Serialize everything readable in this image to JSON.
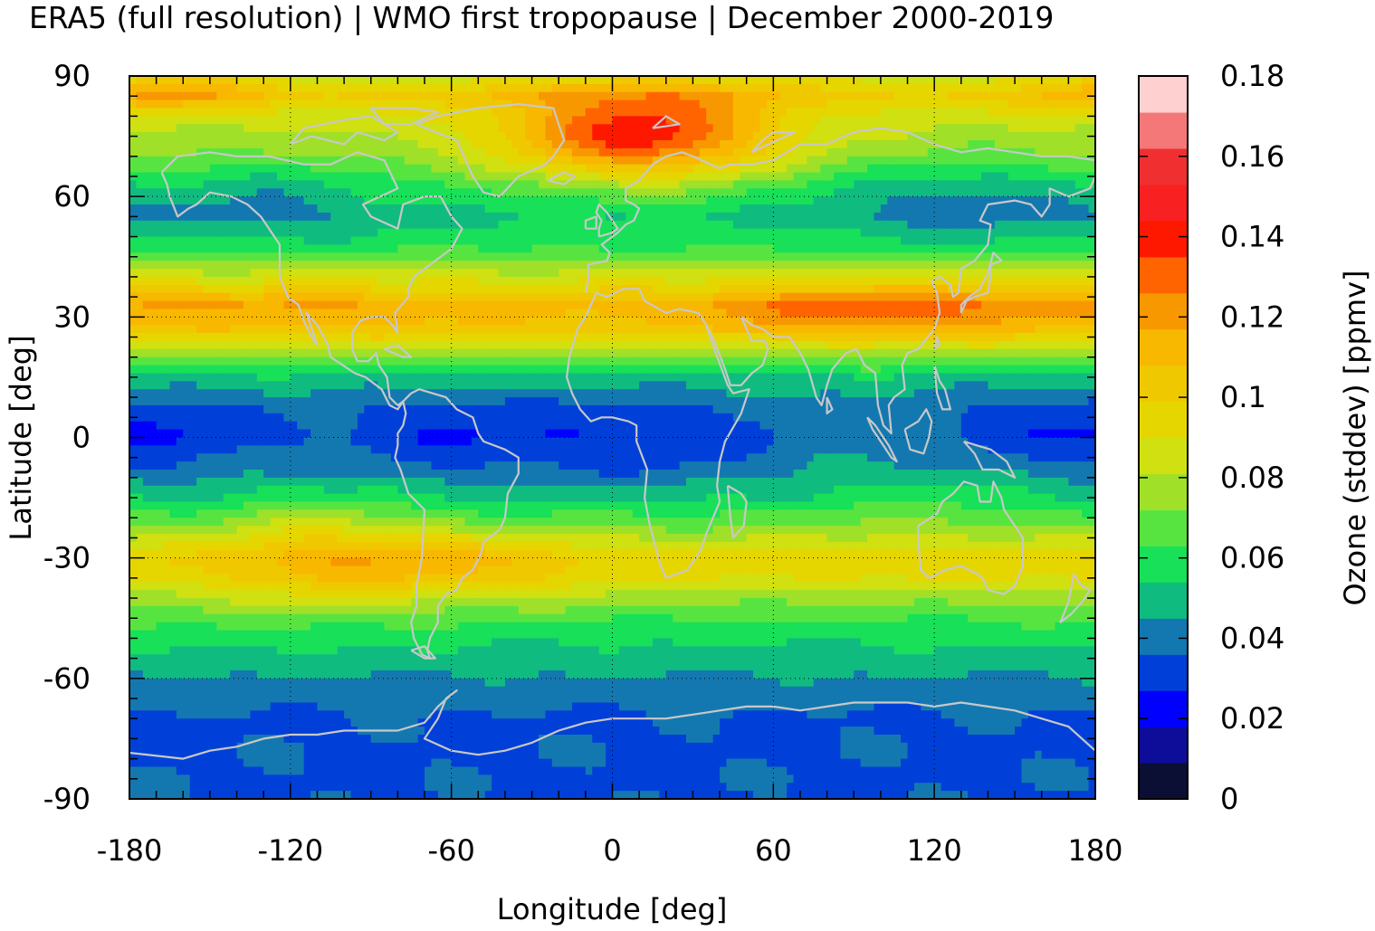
{
  "chart_data": {
    "type": "heatmap",
    "title": "ERA5 (full resolution) | WMO first tropopause | December 2000-2019",
    "xlabel": "Longitude [deg]",
    "ylabel": "Latitude [deg]",
    "colorbar_label": "Ozone (stddev) [ppmv]",
    "xlim": [
      -180,
      180
    ],
    "ylim": [
      -90,
      90
    ],
    "x_ticks": [
      "-180",
      "-120",
      "-60",
      "0",
      "60",
      "120",
      "180"
    ],
    "y_ticks": [
      "90",
      "60",
      "30",
      "0",
      "-30",
      "-60",
      "-90"
    ],
    "colorbar_range": [
      0,
      0.18
    ],
    "colorbar_ticks": [
      "0",
      "0.02",
      "0.04",
      "0.06",
      "0.08",
      "0.1",
      "0.12",
      "0.14",
      "0.16",
      "0.18"
    ],
    "grid": "dotted",
    "colorscale": [
      "#0b0f33",
      "#0d0d99",
      "#0000ff",
      "#0040d8",
      "#1478b0",
      "#10bb80",
      "#18e058",
      "#58e440",
      "#a0e028",
      "#d0e010",
      "#e6d600",
      "#f0c800",
      "#f8b800",
      "#f89800",
      "#ff6400",
      "#ff1800",
      "#f82020",
      "#f03030",
      "#f47878",
      "#ffd0d0"
    ],
    "zonal_profile": {
      "lat": [
        -90,
        -80,
        -70,
        -62,
        -55,
        -48,
        -42,
        -35,
        -30,
        -22,
        -15,
        -8,
        0,
        8,
        15,
        22,
        27,
        33,
        40,
        48,
        55,
        62,
        70,
        80,
        85,
        90
      ],
      "values": [
        0.035,
        0.035,
        0.035,
        0.042,
        0.05,
        0.058,
        0.07,
        0.09,
        0.095,
        0.07,
        0.052,
        0.04,
        0.035,
        0.04,
        0.052,
        0.08,
        0.1,
        0.11,
        0.085,
        0.06,
        0.052,
        0.06,
        0.075,
        0.085,
        0.1,
        0.085
      ]
    }
  }
}
